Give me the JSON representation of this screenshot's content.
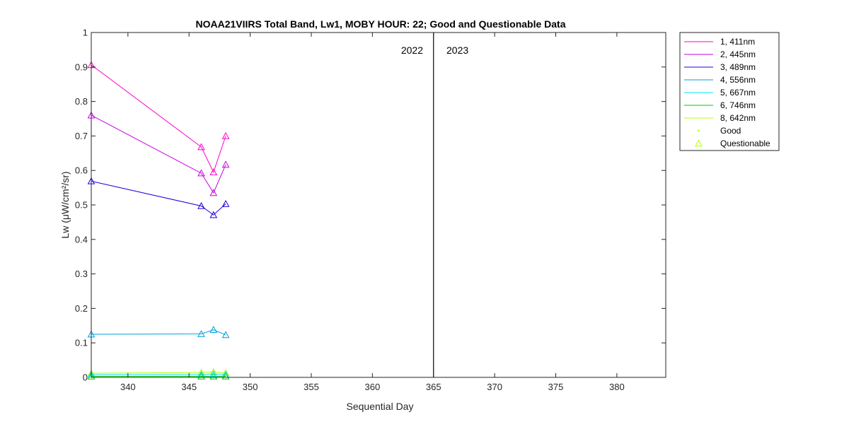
{
  "chart_data": {
    "type": "line",
    "title": "NOAA21VIIRS Total Band,  Lw1, MOBY HOUR: 22;  Good and Questionable Data",
    "xlabel": "Sequential Day",
    "ylabel": "Lw (μW/cm²/sr)",
    "xlim": [
      337,
      384
    ],
    "ylim": [
      0,
      1
    ],
    "xticks": [
      340,
      345,
      350,
      355,
      360,
      365,
      370,
      375,
      380
    ],
    "yticks": [
      0,
      0.1,
      0.2,
      0.3,
      0.4,
      0.5,
      0.6,
      0.7,
      0.8,
      0.9,
      1
    ],
    "ytick_labels": [
      "0",
      "0.1",
      "0.2",
      "0.3",
      "0.4",
      "0.5",
      "0.6",
      "0.7",
      "0.8",
      "0.9",
      "1"
    ],
    "grid": false,
    "legend_position": "outside-top-right",
    "year_boundary": {
      "x": 365,
      "left_label": "2022",
      "right_label": "2023",
      "color": "#000000"
    },
    "x": [
      337,
      346,
      347,
      348
    ],
    "series": [
      {
        "name": "1, 411nm",
        "color": "#ff00c8",
        "values": [
          0.906,
          0.668,
          0.595,
          0.7
        ]
      },
      {
        "name": "2, 445nm",
        "color": "#c800e6",
        "values": [
          0.76,
          0.592,
          0.535,
          0.617
        ]
      },
      {
        "name": "3, 489nm",
        "color": "#1e00dc",
        "values": [
          0.569,
          0.497,
          0.471,
          0.503
        ]
      },
      {
        "name": "4, 556nm",
        "color": "#00a0dc",
        "values": [
          0.125,
          0.126,
          0.138,
          0.123
        ]
      },
      {
        "name": "5, 667nm",
        "color": "#00e1ff",
        "values": [
          0.008,
          0.008,
          0.01,
          0.008
        ]
      },
      {
        "name": "6, 746nm",
        "color": "#00c800",
        "values": [
          0.003,
          0.003,
          0.003,
          0.003
        ]
      },
      {
        "name": "8, 642nm",
        "color": "#b4ff00",
        "values": [
          0.012,
          0.014,
          0.016,
          0.013
        ]
      }
    ],
    "legend_markers": [
      {
        "name": "Good",
        "marker": "dot",
        "color": "#b4ff00"
      },
      {
        "name": "Questionable",
        "marker": "triangle",
        "color": "#b4ff00"
      }
    ],
    "quality": "questionable"
  }
}
